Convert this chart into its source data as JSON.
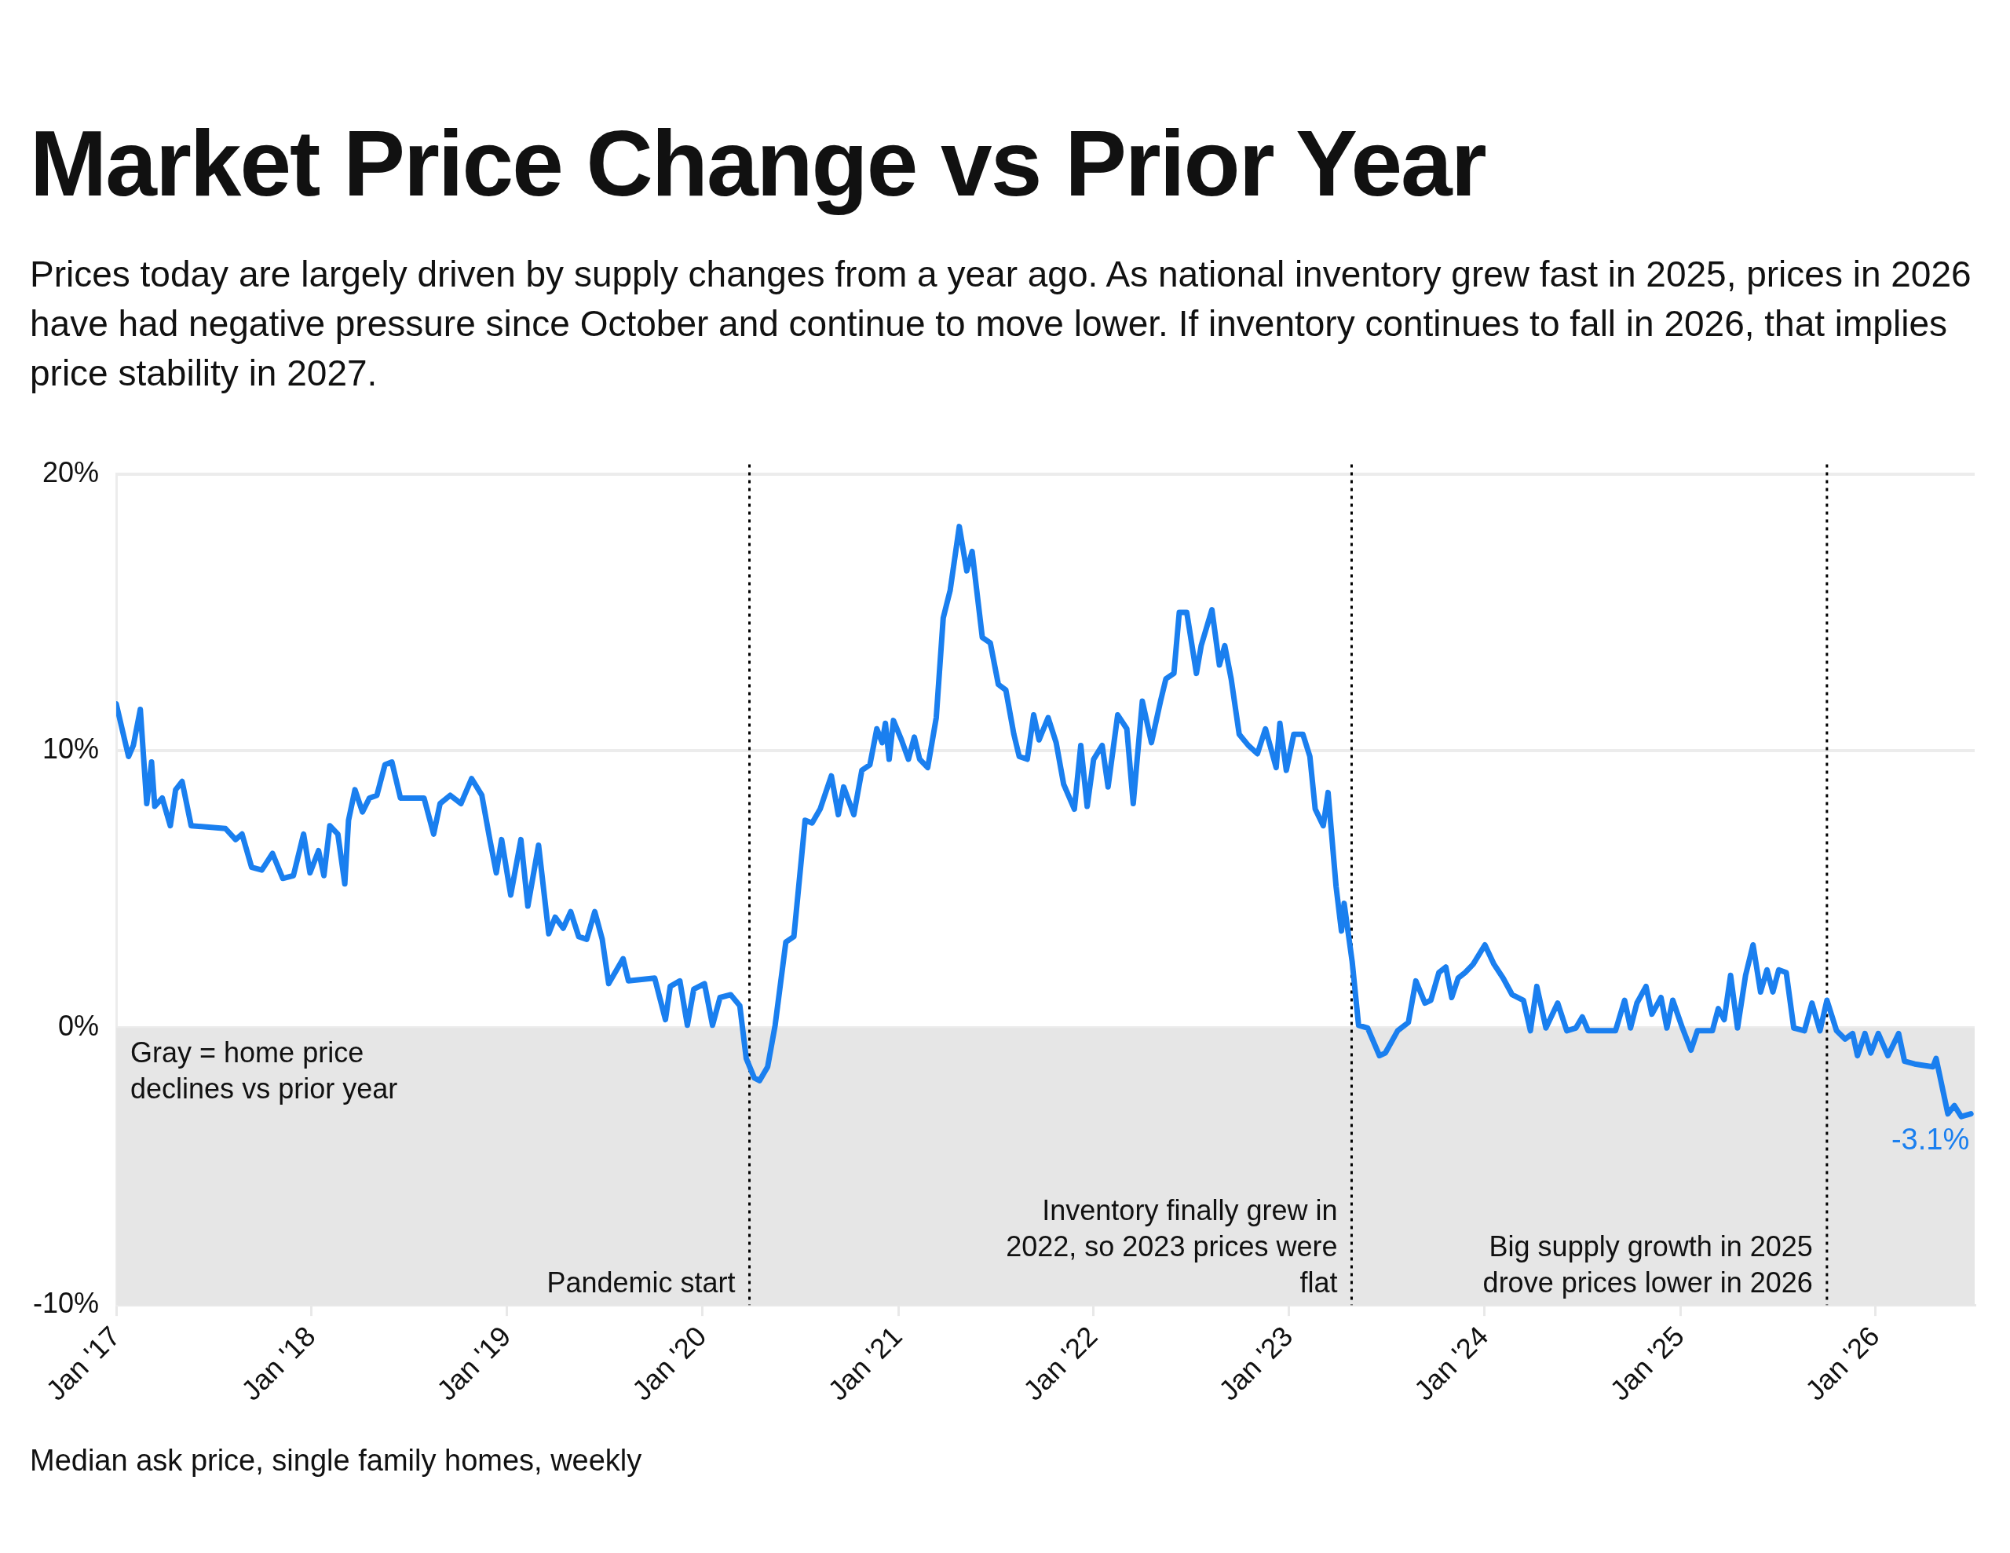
{
  "chart_data": {
    "type": "line",
    "title": "Market Price Change vs Prior Year",
    "subtitle": "Prices today are largely driven by supply changes from a year ago. As national inventory grew fast in 2025, prices in 2026 have had negative pressure since October and continue to move lower. If inventory continues to fall in 2026, that implies price stability in 2027.",
    "xlim": [
      "2017-01-01",
      "2026-07-05"
    ],
    "xticks": [
      {
        "value": "2017-01-01",
        "label": "Jan '17"
      },
      {
        "value": "2018-01-01",
        "label": "Jan '18"
      },
      {
        "value": "2019-01-01",
        "label": "Jan '19"
      },
      {
        "value": "2020-01-01",
        "label": "Jan '20"
      },
      {
        "value": "2021-01-01",
        "label": "Jan '21"
      },
      {
        "value": "2022-01-01",
        "label": "Jan '22"
      },
      {
        "value": "2023-01-01",
        "label": "Jan '23"
      },
      {
        "value": "2024-01-01",
        "label": "Jan '24"
      },
      {
        "value": "2025-01-01",
        "label": "Jan '25"
      },
      {
        "value": "2026-01-01",
        "label": "Jan '26"
      }
    ],
    "ylim": [
      -10,
      20
    ],
    "yticks": [
      {
        "value": -10,
        "label": "-10%"
      },
      {
        "value": 0,
        "label": "0%"
      },
      {
        "value": 10,
        "label": "10%"
      },
      {
        "value": 20,
        "label": "20%"
      }
    ],
    "grid": "y",
    "marker": "none",
    "line_style": "solid",
    "series": [
      {
        "color": "#1a7fef",
        "x": [
          "2017-01-01",
          "2017-01-24",
          "2017-02-02",
          "2017-02-15",
          "2017-02-27",
          "2017-03-08",
          "2017-03-14",
          "2017-03-28",
          "2017-04-12",
          "2017-04-22",
          "2017-05-04",
          "2017-05-21",
          "2017-07-24",
          "2017-08-12",
          "2017-08-24",
          "2017-09-11",
          "2017-09-30",
          "2017-10-20",
          "2017-11-08",
          "2017-11-28",
          "2017-12-17",
          "2017-12-29",
          "2018-01-14",
          "2018-01-24",
          "2018-02-04",
          "2018-02-19",
          "2018-03-04",
          "2018-03-11",
          "2018-03-23",
          "2018-04-06",
          "2018-04-19",
          "2018-05-03",
          "2018-05-18",
          "2018-05-31",
          "2018-06-16",
          "2018-07-30",
          "2018-08-17",
          "2018-08-29",
          "2018-09-17",
          "2018-10-07",
          "2018-10-27",
          "2018-11-15",
          "2018-11-30",
          "2018-12-12",
          "2018-12-22",
          "2019-01-08",
          "2019-01-27",
          "2019-02-09",
          "2019-03-01",
          "2019-03-20",
          "2019-04-01",
          "2019-04-16",
          "2019-04-30",
          "2019-05-15",
          "2019-05-30",
          "2019-06-14",
          "2019-06-28",
          "2019-07-10",
          "2019-08-06",
          "2019-08-16",
          "2019-10-04",
          "2019-10-24",
          "2019-11-02",
          "2019-11-20",
          "2019-12-04",
          "2019-12-16",
          "2020-01-05",
          "2020-01-20",
          "2020-02-03",
          "2020-02-23",
          "2020-03-11",
          "2020-03-23",
          "2020-04-07",
          "2020-04-17",
          "2020-05-02",
          "2020-05-16",
          "2020-06-05",
          "2020-06-20",
          "2020-06-29",
          "2020-07-11",
          "2020-07-24",
          "2020-08-08",
          "2020-08-29",
          "2020-09-11",
          "2020-09-21",
          "2020-10-10",
          "2020-10-25",
          "2020-11-09",
          "2020-11-22",
          "2020-12-02",
          "2020-12-08",
          "2020-12-15",
          "2020-12-23",
          "2021-01-07",
          "2021-01-20",
          "2021-01-31",
          "2021-02-10",
          "2021-02-25",
          "2021-03-13",
          "2021-03-26",
          "2021-04-08",
          "2021-04-25",
          "2021-05-09",
          "2021-05-19",
          "2021-06-07",
          "2021-06-22",
          "2021-07-07",
          "2021-07-21",
          "2021-08-05",
          "2021-08-15",
          "2021-08-30",
          "2021-09-11",
          "2021-09-21",
          "2021-10-08",
          "2021-10-23",
          "2021-11-06",
          "2021-11-26",
          "2021-12-08",
          "2021-12-20",
          "2022-01-01",
          "2022-01-17",
          "2022-01-28",
          "2022-02-15",
          "2022-03-04",
          "2022-03-16",
          "2022-04-02",
          "2022-04-19",
          "2022-05-06",
          "2022-05-16",
          "2022-05-31",
          "2022-06-10",
          "2022-06-24",
          "2022-07-12",
          "2022-07-21",
          "2022-08-10",
          "2022-08-24",
          "2022-09-03",
          "2022-09-15",
          "2022-09-30",
          "2022-10-17",
          "2022-11-03",
          "2022-11-18",
          "2022-12-08",
          "2022-12-15",
          "2022-12-27",
          "2023-01-10",
          "2023-01-27",
          "2023-02-09",
          "2023-02-19",
          "2023-03-06",
          "2023-03-15",
          "2023-03-30",
          "2023-04-09",
          "2023-04-14",
          "2023-04-29",
          "2023-05-11",
          "2023-05-28",
          "2023-06-19",
          "2023-06-30",
          "2023-07-23",
          "2023-08-12",
          "2023-08-26",
          "2023-09-12",
          "2023-09-23",
          "2023-10-08",
          "2023-10-21",
          "2023-11-01",
          "2023-11-13",
          "2023-11-26",
          "2023-12-11",
          "2024-01-02",
          "2024-01-19",
          "2024-02-05",
          "2024-02-22",
          "2024-03-14",
          "2024-03-27",
          "2024-04-08",
          "2024-04-25",
          "2024-05-17",
          "2024-06-03",
          "2024-06-20",
          "2024-07-02",
          "2024-07-13",
          "2024-09-02",
          "2024-09-19",
          "2024-09-30",
          "2024-10-12",
          "2024-10-29",
          "2024-11-09",
          "2024-11-26",
          "2024-12-07",
          "2024-12-18",
          "2025-01-05",
          "2025-01-21",
          "2025-02-02",
          "2025-03-02",
          "2025-03-13",
          "2025-03-24",
          "2025-04-05",
          "2025-04-18",
          "2025-05-03",
          "2025-05-17",
          "2025-05-31",
          "2025-06-12",
          "2025-06-23",
          "2025-07-04",
          "2025-07-18",
          "2025-08-01",
          "2025-08-21",
          "2025-09-04",
          "2025-09-19",
          "2025-10-02",
          "2025-10-20",
          "2025-11-05",
          "2025-11-19",
          "2025-11-28",
          "2025-12-12",
          "2025-12-23",
          "2026-01-06",
          "2026-01-24",
          "2026-02-13",
          "2026-02-24",
          "2026-03-15",
          "2026-04-18",
          "2026-04-24",
          "2026-05-16",
          "2026-05-28",
          "2026-06-10",
          "2026-06-28"
        ],
        "values": [
          11.7,
          9.8,
          10.2,
          11.5,
          8.1,
          9.6,
          8.0,
          8.3,
          7.3,
          8.6,
          8.9,
          7.3,
          7.2,
          6.8,
          7.0,
          5.8,
          5.7,
          6.3,
          5.4,
          5.5,
          7.0,
          5.6,
          6.4,
          5.5,
          7.3,
          7.0,
          5.2,
          7.5,
          8.6,
          7.8,
          8.3,
          8.4,
          9.5,
          9.6,
          8.3,
          8.3,
          7.0,
          8.1,
          8.4,
          8.1,
          9.0,
          8.4,
          6.8,
          5.6,
          6.8,
          4.8,
          6.8,
          4.4,
          6.6,
          3.4,
          4.0,
          3.6,
          4.2,
          3.3,
          3.2,
          4.2,
          3.2,
          1.6,
          2.5,
          1.7,
          1.8,
          0.3,
          1.5,
          1.7,
          0.1,
          1.4,
          1.6,
          0.1,
          1.1,
          1.2,
          0.8,
          -1.1,
          -1.8,
          -1.9,
          -1.4,
          0.1,
          3.1,
          3.3,
          5.1,
          7.5,
          7.4,
          7.9,
          9.1,
          7.7,
          8.7,
          7.7,
          9.3,
          9.5,
          10.8,
          10.3,
          11.0,
          9.7,
          11.1,
          10.4,
          9.7,
          10.5,
          9.7,
          9.4,
          11.2,
          14.8,
          15.8,
          18.1,
          16.5,
          17.2,
          14.1,
          13.9,
          12.4,
          12.2,
          10.6,
          9.8,
          9.7,
          11.3,
          10.4,
          11.2,
          10.3,
          8.8,
          7.9,
          10.2,
          8.0,
          9.7,
          10.2,
          8.7,
          11.3,
          10.8,
          8.1,
          11.8,
          10.3,
          11.8,
          12.6,
          12.8,
          15.0,
          15.0,
          12.8,
          13.8,
          15.1,
          13.1,
          13.8,
          12.6,
          10.6,
          10.2,
          9.9,
          10.8,
          9.4,
          11.0,
          9.3,
          10.6,
          10.6,
          9.8,
          7.9,
          7.3,
          8.5,
          5.1,
          3.5,
          4.5,
          2.4,
          0.1,
          0.0,
          -1.0,
          -0.9,
          -0.1,
          0.2,
          1.7,
          0.9,
          1.0,
          2.0,
          2.2,
          1.1,
          1.8,
          2.0,
          2.3,
          3.0,
          2.3,
          1.8,
          1.2,
          1.0,
          -0.1,
          1.5,
          0.0,
          0.9,
          -0.1,
          0.0,
          0.4,
          -0.1,
          -0.1,
          1.0,
          0.0,
          0.9,
          1.5,
          0.5,
          1.1,
          0.0,
          1.0,
          0.0,
          -0.8,
          -0.1,
          -0.1,
          0.7,
          0.3,
          1.9,
          0.0,
          1.9,
          3.0,
          1.3,
          2.1,
          1.3,
          2.1,
          2.0,
          0.0,
          -0.1,
          0.9,
          -0.1,
          1.0,
          -0.1,
          -0.4,
          -0.2,
          -1.0,
          -0.2,
          -0.9,
          -0.2,
          -1.0,
          -0.2,
          -1.2,
          -1.3,
          -1.4,
          -1.1,
          -3.1,
          -2.8,
          -3.2,
          -3.1
        ]
      }
    ],
    "bands": [
      {
        "axis": "y",
        "from": -10,
        "to": 0,
        "color": "#e6e6e6",
        "label": "Gray = home price declines vs prior year"
      }
    ],
    "ref_lines": [
      {
        "axis": "x",
        "value": "2020-03-29",
        "label": "Pandemic start",
        "color": "#000000",
        "line_style": "dotted"
      },
      {
        "axis": "x",
        "value": "2023-04-28",
        "label": "Inventory finally grew in 2022, so 2023 prices were flat",
        "color": "#000000",
        "line_style": "dotted"
      },
      {
        "axis": "x",
        "value": "2025-10-02",
        "label": "Big supply growth in 2025 drove prices lower in 2026",
        "color": "#000000",
        "line_style": "dotted"
      }
    ],
    "annotations": [
      {
        "text": "-3.1%",
        "x": "2026-06-28",
        "y": -3.1
      },
      "Median ask price, single family homes, weekly"
    ]
  }
}
